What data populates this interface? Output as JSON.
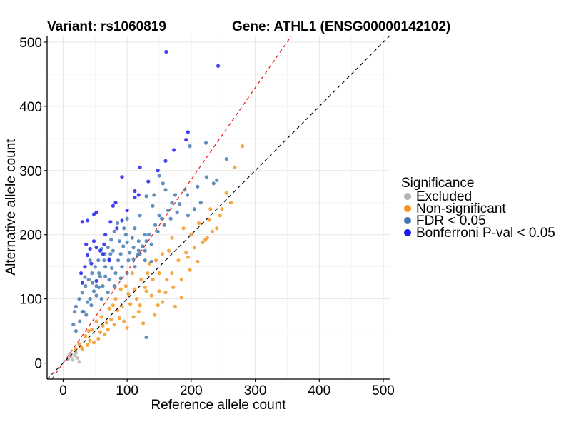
{
  "titles": {
    "variant": "Variant: rs1060819",
    "gene": "Gene: ATHL1 (ENSG00000142102)"
  },
  "chart_data": {
    "type": "scatter",
    "xlabel": "Reference allele count",
    "ylabel": "Alternative allele count",
    "xlim": [
      -25,
      510
    ],
    "ylim": [
      -25,
      510
    ],
    "xticks": [
      0,
      100,
      200,
      300,
      400,
      500
    ],
    "yticks": [
      0,
      100,
      200,
      300,
      400,
      500
    ],
    "grid": true,
    "reference_lines": [
      {
        "name": "y = x",
        "slope": 1.0,
        "intercept": 0,
        "color": "#000000",
        "dash": true
      },
      {
        "name": "fitted ratio",
        "slope": 1.43,
        "intercept": 0,
        "color": "#e8191c",
        "dash": true
      }
    ],
    "legend": {
      "title": "Significance",
      "placement": "right",
      "entries": [
        {
          "label": "Excluded",
          "color": "#b3b3b3"
        },
        {
          "label": "Non-significant",
          "color": "#f7941d"
        },
        {
          "label": "FDR < 0.05",
          "color": "#3f78b0"
        },
        {
          "label": "Bonferroni P-val < 0.05",
          "color": "#1a1aee"
        }
      ]
    },
    "series": [
      {
        "name": "Excluded",
        "color": "#b3b3b3",
        "points": [
          [
            8,
            6
          ],
          [
            12,
            10
          ],
          [
            15,
            5
          ],
          [
            18,
            12
          ],
          [
            22,
            8
          ],
          [
            25,
            2
          ],
          [
            10,
            14
          ],
          [
            20,
            16
          ]
        ]
      },
      {
        "name": "Non-significant",
        "color": "#f7941d",
        "points": [
          [
            280,
            338
          ],
          [
            268,
            305
          ],
          [
            248,
            240
          ],
          [
            225,
            195
          ],
          [
            222,
            192
          ],
          [
            192,
            172
          ],
          [
            210,
            158
          ],
          [
            240,
            210
          ],
          [
            228,
            223
          ],
          [
            175,
            88
          ],
          [
            172,
            118
          ],
          [
            143,
            75
          ],
          [
            160,
            110
          ],
          [
            185,
            130
          ],
          [
            198,
            145
          ],
          [
            205,
            180
          ],
          [
            218,
            188
          ],
          [
            233,
            205
          ],
          [
            262,
            250
          ],
          [
            245,
            230
          ],
          [
            120,
            90
          ],
          [
            150,
            140
          ],
          [
            135,
            155
          ],
          [
            195,
            165
          ],
          [
            180,
            160
          ],
          [
            170,
            140
          ],
          [
            165,
            175
          ],
          [
            150,
            112
          ],
          [
            138,
            105
          ],
          [
            128,
            118
          ],
          [
            200,
            200
          ],
          [
            155,
            95
          ],
          [
            110,
            72
          ],
          [
            125,
            62
          ],
          [
            140,
            130
          ],
          [
            212,
            218
          ],
          [
            170,
            195
          ],
          [
            188,
            210
          ],
          [
            230,
            240
          ],
          [
            255,
            265
          ],
          [
            185,
            102
          ],
          [
            162,
            130
          ],
          [
            148,
            90
          ],
          [
            100,
            55
          ],
          [
            118,
            80
          ],
          [
            42,
            35
          ],
          [
            65,
            45
          ],
          [
            80,
            60
          ],
          [
            95,
            65
          ],
          [
            55,
            38
          ],
          [
            30,
            22
          ],
          [
            38,
            28
          ],
          [
            48,
            32
          ],
          [
            70,
            52
          ],
          [
            88,
            70
          ],
          [
            105,
            92
          ],
          [
            115,
            100
          ],
          [
            130,
            112
          ],
          [
            62,
            58
          ],
          [
            75,
            68
          ],
          [
            85,
            82
          ],
          [
            92,
            88
          ],
          [
            58,
            48
          ],
          [
            68,
            63
          ],
          [
            102,
            108
          ],
          [
            112,
            115
          ],
          [
            122,
            130
          ],
          [
            132,
            140
          ],
          [
            145,
            160
          ],
          [
            155,
            170
          ],
          [
            78,
            90
          ],
          [
            98,
            120
          ],
          [
            108,
            140
          ],
          [
            60,
            72
          ],
          [
            45,
            52
          ],
          [
            35,
            42
          ],
          [
            25,
            30
          ],
          [
            20,
            22
          ],
          [
            28,
            25
          ],
          [
            40,
            50
          ],
          [
            52,
            65
          ],
          [
            82,
            100
          ],
          [
            90,
            115
          ],
          [
            72,
            85
          ]
        ]
      },
      {
        "name": "FDR < 0.05",
        "color": "#3f78b0",
        "points": [
          [
            223,
            343
          ],
          [
            198,
            338
          ],
          [
            255,
            318
          ],
          [
            240,
            285
          ],
          [
            235,
            280
          ],
          [
            215,
            250
          ],
          [
            205,
            240
          ],
          [
            195,
            230
          ],
          [
            182,
            248
          ],
          [
            175,
            262
          ],
          [
            160,
            270
          ],
          [
            150,
            292
          ],
          [
            130,
            260
          ],
          [
            140,
            245
          ],
          [
            120,
            230
          ],
          [
            128,
            200
          ],
          [
            118,
            190
          ],
          [
            112,
            210
          ],
          [
            100,
            225
          ],
          [
            95,
            210
          ],
          [
            85,
            218
          ],
          [
            80,
            205
          ],
          [
            75,
            192
          ],
          [
            70,
            180
          ],
          [
            65,
            170
          ],
          [
            60,
            178
          ],
          [
            55,
            160
          ],
          [
            50,
            150
          ],
          [
            45,
            140
          ],
          [
            40,
            130
          ],
          [
            35,
            120
          ],
          [
            30,
            110
          ],
          [
            25,
            100
          ],
          [
            20,
            88
          ],
          [
            18,
            80
          ],
          [
            16,
            60
          ],
          [
            20,
            50
          ],
          [
            26,
            65
          ],
          [
            32,
            80
          ],
          [
            42,
            100
          ],
          [
            52,
            120
          ],
          [
            58,
            135
          ],
          [
            66,
            150
          ],
          [
            72,
            162
          ],
          [
            78,
            175
          ],
          [
            88,
            190
          ],
          [
            98,
            200
          ],
          [
            108,
            195
          ],
          [
            118,
            175
          ],
          [
            128,
            175
          ],
          [
            138,
            185
          ],
          [
            148,
            205
          ],
          [
            158,
            215
          ],
          [
            168,
            225
          ],
          [
            178,
            235
          ],
          [
            138,
            158
          ],
          [
            128,
            160
          ],
          [
            112,
            150
          ],
          [
            102,
            160
          ],
          [
            92,
            150
          ],
          [
            82,
            140
          ],
          [
            72,
            130
          ],
          [
            62,
            120
          ],
          [
            52,
            105
          ],
          [
            44,
            90
          ],
          [
            36,
            75
          ],
          [
            90,
            170
          ],
          [
            110,
            180
          ],
          [
            130,
            190
          ],
          [
            150,
            230
          ],
          [
            170,
            250
          ],
          [
            190,
            270
          ],
          [
            100,
            188
          ],
          [
            86,
            160
          ],
          [
            76,
            148
          ],
          [
            66,
            135
          ],
          [
            56,
            118
          ],
          [
            48,
            112
          ],
          [
            38,
            95
          ],
          [
            30,
            80
          ],
          [
            46,
            125
          ],
          [
            56,
            140
          ],
          [
            64,
            160
          ],
          [
            74,
            170
          ],
          [
            94,
            182
          ],
          [
            104,
            172
          ],
          [
            116,
            168
          ],
          [
            124,
            182
          ],
          [
            134,
            200
          ],
          [
            144,
            215
          ],
          [
            154,
            225
          ],
          [
            164,
            238
          ],
          [
            194,
            262
          ],
          [
            210,
            275
          ],
          [
            224,
            290
          ],
          [
            142,
            262
          ],
          [
            156,
            280
          ],
          [
            34,
            134
          ],
          [
            42,
            160
          ],
          [
            130,
            40
          ],
          [
            70,
            110
          ],
          [
            60,
            100
          ],
          [
            80,
            120
          ],
          [
            90,
            132
          ],
          [
            100,
            140
          ],
          [
            110,
            162
          ],
          [
            120,
            170
          ]
        ]
      },
      {
        "name": "Bonferroni P-val < 0.05",
        "color": "#1a1aee",
        "points": [
          [
            161,
            485
          ],
          [
            242,
            463
          ],
          [
            195,
            360
          ],
          [
            192,
            348
          ],
          [
            173,
            332
          ],
          [
            160,
            315
          ],
          [
            120,
            305
          ],
          [
            148,
            300
          ],
          [
            92,
            290
          ],
          [
            133,
            283
          ],
          [
            112,
            268
          ],
          [
            118,
            262
          ],
          [
            112,
            258
          ],
          [
            82,
            250
          ],
          [
            78,
            245
          ],
          [
            52,
            235
          ],
          [
            48,
            232
          ],
          [
            38,
            222
          ],
          [
            30,
            220
          ],
          [
            92,
            222
          ],
          [
            48,
            190
          ],
          [
            52,
            180
          ],
          [
            62,
            170
          ],
          [
            72,
            160
          ],
          [
            38,
            168
          ],
          [
            52,
            128
          ],
          [
            30,
            125
          ],
          [
            44,
            155
          ],
          [
            64,
            185
          ],
          [
            58,
            175
          ],
          [
            42,
            178
          ],
          [
            34,
            150
          ],
          [
            84,
            210
          ],
          [
            100,
            238
          ],
          [
            66,
            200
          ],
          [
            74,
            220
          ],
          [
            28,
            140
          ],
          [
            36,
            185
          ]
        ]
      }
    ]
  }
}
